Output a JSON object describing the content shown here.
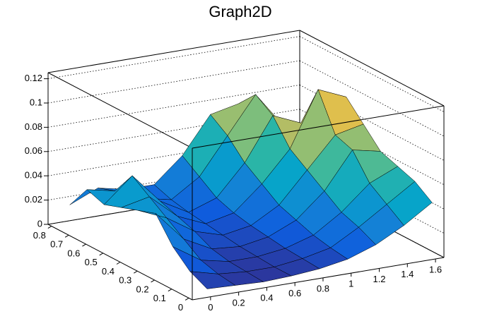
{
  "chart_data": {
    "type": "surface",
    "title": "Graph2D",
    "x": [
      0,
      0.2,
      0.4,
      0.6,
      0.8,
      1.0,
      1.2,
      1.4,
      1.6
    ],
    "y": [
      0,
      0.1,
      0.2,
      0.3,
      0.4,
      0.5,
      0.6,
      0.7,
      0.8
    ],
    "z": [
      [
        0.005,
        0.004,
        0.003,
        0.004,
        0.006,
        0.01,
        0.018,
        0.03,
        0.045
      ],
      [
        0.012,
        0.006,
        0.004,
        0.004,
        0.007,
        0.012,
        0.025,
        0.04,
        0.055
      ],
      [
        0.025,
        0.01,
        0.005,
        0.005,
        0.008,
        0.015,
        0.03,
        0.05,
        0.06
      ],
      [
        0.045,
        0.02,
        0.008,
        0.006,
        0.01,
        0.02,
        0.04,
        0.07,
        0.065
      ],
      [
        0.04,
        0.03,
        0.015,
        0.008,
        0.012,
        0.025,
        0.05,
        0.075,
        0.08
      ],
      [
        0.035,
        0.04,
        0.02,
        0.01,
        0.015,
        0.035,
        0.06,
        0.105,
        0.095
      ],
      [
        0.03,
        0.05,
        0.025,
        0.012,
        0.02,
        0.045,
        0.08,
        0.07,
        0.07
      ],
      [
        0.035,
        0.03,
        0.02,
        0.015,
        0.03,
        0.06,
        0.09,
        0.06,
        0.055
      ],
      [
        0.015,
        0.025,
        0.02,
        0.02,
        0.04,
        0.07,
        0.075,
        0.055,
        0.05
      ]
    ],
    "xlim": [
      -0.13,
      1.66
    ],
    "ylim": [
      -0.02,
      0.82
    ],
    "zlim": [
      0,
      0.125
    ],
    "xticks": [
      0,
      0.2,
      0.4,
      0.6,
      0.8,
      1,
      1.2,
      1.4,
      1.6
    ],
    "yticks": [
      0,
      0.1,
      0.2,
      0.3,
      0.4,
      0.5,
      0.6,
      0.7,
      0.8
    ],
    "zticks": [
      0,
      0.02,
      0.04,
      0.06,
      0.08,
      0.1,
      0.12
    ],
    "grid": true,
    "colormap": [
      "#352a87",
      "#0f5cdd",
      "#1481d6",
      "#06a4ca",
      "#2eb7a4",
      "#87bf77",
      "#d1bb59",
      "#fec832",
      "#f9fb0e"
    ]
  }
}
